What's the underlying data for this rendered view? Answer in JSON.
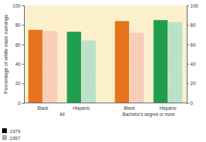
{
  "chart_data": {
    "type": "bar",
    "y_label": "Percentage of white male earnings",
    "categories": [
      "Black",
      "Hispanic",
      "Black",
      "Hispanic"
    ],
    "group_labels": [
      "All",
      "Bachelor's degree or more"
    ],
    "series": [
      {
        "name": "1979",
        "color": "#000000",
        "colors": [
          "#e8731e",
          "#1f9e4d",
          "#e8731e",
          "#1f9e4d"
        ],
        "values": [
          75,
          73,
          84,
          85
        ]
      },
      {
        "name": "1997",
        "color": "#aaaaaa",
        "colors": [
          "#f7c9b4",
          "#b5dfc4",
          "#f7c9b4",
          "#b5dfc4"
        ],
        "values": [
          74,
          64,
          72,
          83
        ]
      }
    ],
    "ylim": [
      0,
      100
    ],
    "yticks": [
      0,
      20,
      40,
      60,
      80,
      100
    ],
    "y2lim": [
      0,
      100
    ],
    "y2ticks": [
      0,
      20,
      40,
      60,
      80,
      100
    ],
    "legend": "bottom-left",
    "grid": false
  }
}
